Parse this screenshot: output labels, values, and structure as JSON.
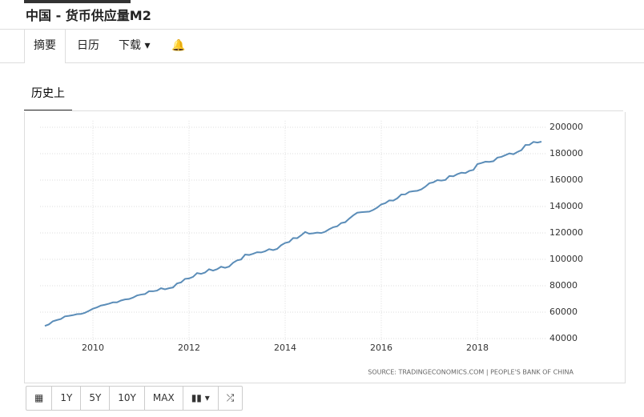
{
  "header": {
    "title": "中国 - 货币供应量M2"
  },
  "tabs": [
    "摘要",
    "日历",
    "下载"
  ],
  "subtab": "历史上",
  "source": "SOURCE: TRADINGECONOMICS.COM | PEOPLE'S BANK OF CHINA",
  "buttons": [
    "1Y",
    "5Y",
    "10Y",
    "MAX"
  ],
  "chart_data": {
    "type": "line",
    "x": [
      2009.0,
      2009.083,
      2009.167,
      2009.25,
      2009.333,
      2009.417,
      2009.5,
      2009.583,
      2009.667,
      2009.75,
      2009.833,
      2009.917,
      2010.0,
      2010.083,
      2010.167,
      2010.25,
      2010.333,
      2010.417,
      2010.5,
      2010.583,
      2010.667,
      2010.75,
      2010.833,
      2010.917,
      2011.0,
      2011.083,
      2011.167,
      2011.25,
      2011.333,
      2011.417,
      2011.5,
      2011.583,
      2011.667,
      2011.75,
      2011.833,
      2011.917,
      2012.0,
      2012.083,
      2012.167,
      2012.25,
      2012.333,
      2012.417,
      2012.5,
      2012.583,
      2012.667,
      2012.75,
      2012.833,
      2012.917,
      2013.0,
      2013.083,
      2013.167,
      2013.25,
      2013.333,
      2013.417,
      2013.5,
      2013.583,
      2013.667,
      2013.75,
      2013.833,
      2013.917,
      2014.0,
      2014.083,
      2014.167,
      2014.25,
      2014.333,
      2014.417,
      2014.5,
      2014.583,
      2014.667,
      2014.75,
      2014.833,
      2014.917,
      2015.0,
      2015.083,
      2015.167,
      2015.25,
      2015.333,
      2015.417,
      2015.5,
      2015.583,
      2015.667,
      2015.75,
      2015.833,
      2015.917,
      2016.0,
      2016.083,
      2016.167,
      2016.25,
      2016.333,
      2016.417,
      2016.5,
      2016.583,
      2016.667,
      2016.75,
      2016.833,
      2016.917,
      2017.0,
      2017.083,
      2017.167,
      2017.25,
      2017.333,
      2017.417,
      2017.5,
      2017.583,
      2017.667,
      2017.75,
      2017.833,
      2017.917,
      2018.0,
      2018.083,
      2018.167,
      2018.25,
      2018.333,
      2018.417,
      2018.5,
      2018.583,
      2018.667,
      2018.75,
      2018.833,
      2018.917,
      2019.0,
      2019.083,
      2019.167,
      2019.25,
      2019.333
    ],
    "series": [
      {
        "color": "#5b8db8",
        "values": [
          49600,
          50700,
          53100,
          54000,
          54800,
          56800,
          57200,
          57700,
          58500,
          58600,
          59500,
          61000,
          62600,
          63600,
          65000,
          65600,
          66400,
          67400,
          67400,
          68800,
          69600,
          69900,
          71000,
          72600,
          73300,
          73700,
          75800,
          75800,
          76300,
          78100,
          77300,
          78100,
          78700,
          81700,
          82500,
          85200,
          85500,
          86700,
          89600,
          89000,
          90000,
          92500,
          91500,
          92500,
          94400,
          93600,
          94500,
          97400,
          99200,
          99900,
          103600,
          103300,
          104200,
          105400,
          105200,
          106100,
          107700,
          107000,
          107900,
          110700,
          112400,
          113100,
          116100,
          116000,
          118200,
          120700,
          119400,
          119700,
          120200,
          119900,
          120900,
          122800,
          124300,
          125000,
          127500,
          128100,
          130800,
          133300,
          135300,
          135700,
          135900,
          136100,
          137400,
          139200,
          141600,
          142500,
          144600,
          144500,
          146200,
          149100,
          149200,
          151100,
          151600,
          151900,
          153000,
          155000,
          157600,
          158300,
          160000,
          159600,
          160100,
          163100,
          162900,
          164500,
          165600,
          165300,
          167000,
          167700,
          172100,
          172900,
          173900,
          173800,
          174300,
          177000,
          177600,
          178900,
          180200,
          179600,
          181300,
          182700,
          186600,
          186700,
          188900,
          188400,
          189100
        ]
      }
    ],
    "xlim": [
      2008.9,
      2019.45
    ],
    "xticks": [
      2010,
      2012,
      2014,
      2016,
      2018
    ],
    "ylim": [
      35000,
      205000
    ],
    "yticks": [
      40000,
      60000,
      80000,
      100000,
      120000,
      140000,
      160000,
      180000,
      200000
    ],
    "grid": true
  }
}
